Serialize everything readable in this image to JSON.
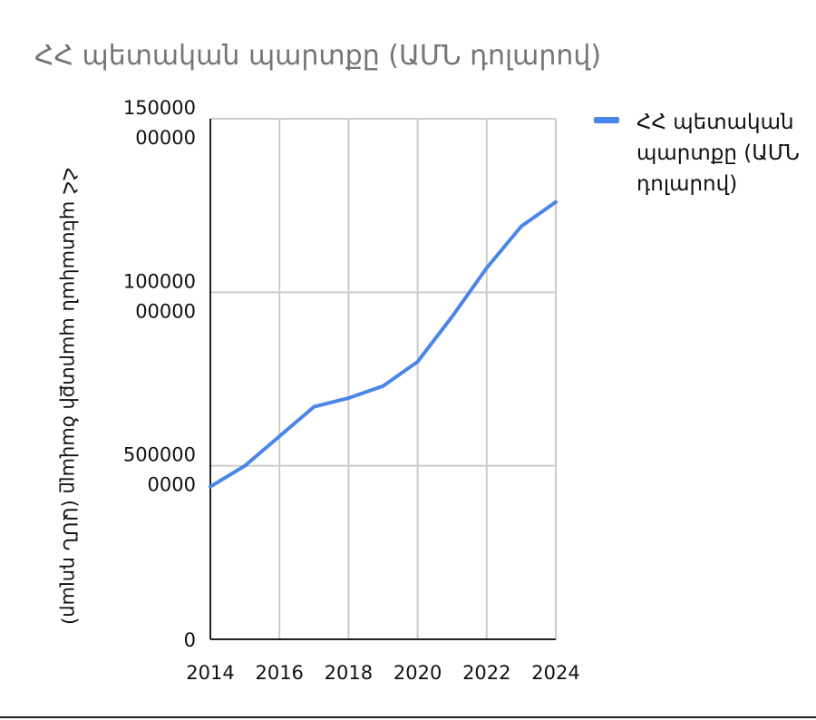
{
  "chart_data": {
    "type": "line",
    "title": "ՀՀ պետական պարտքը (ԱՄՆ դոլարով)",
    "ylabel": "ՀՀ պետական պարտքի ծավալը (ԱՄՆ դոլար)",
    "xlabel": "",
    "x": [
      2014,
      2015,
      2016,
      2017,
      2018,
      2019,
      2020,
      2021,
      2022,
      2023,
      2024
    ],
    "x_ticks": [
      "2014",
      "2016",
      "2018",
      "2020",
      "2022",
      "2024"
    ],
    "xlim": [
      2014,
      2024
    ],
    "ylim": [
      0,
      15000000000
    ],
    "y_ticks": [
      {
        "value": 0,
        "label": [
          "0"
        ]
      },
      {
        "value": 5000000000,
        "label": [
          "500000",
          "0000"
        ]
      },
      {
        "value": 10000000000,
        "label": [
          "100000",
          "00000"
        ]
      },
      {
        "value": 15000000000,
        "label": [
          "150000",
          "00000"
        ]
      }
    ],
    "series": [
      {
        "name": "ՀՀ պետական պարտքը (ԱՄՆ դոլարով)",
        "color": "#4a86e8",
        "values": [
          4400000000,
          5000000000,
          5850000000,
          6700000000,
          6950000000,
          7300000000,
          8000000000,
          9300000000,
          10700000000,
          11900000000,
          12600000000
        ]
      }
    ],
    "grid": true,
    "legend_position": "right"
  }
}
